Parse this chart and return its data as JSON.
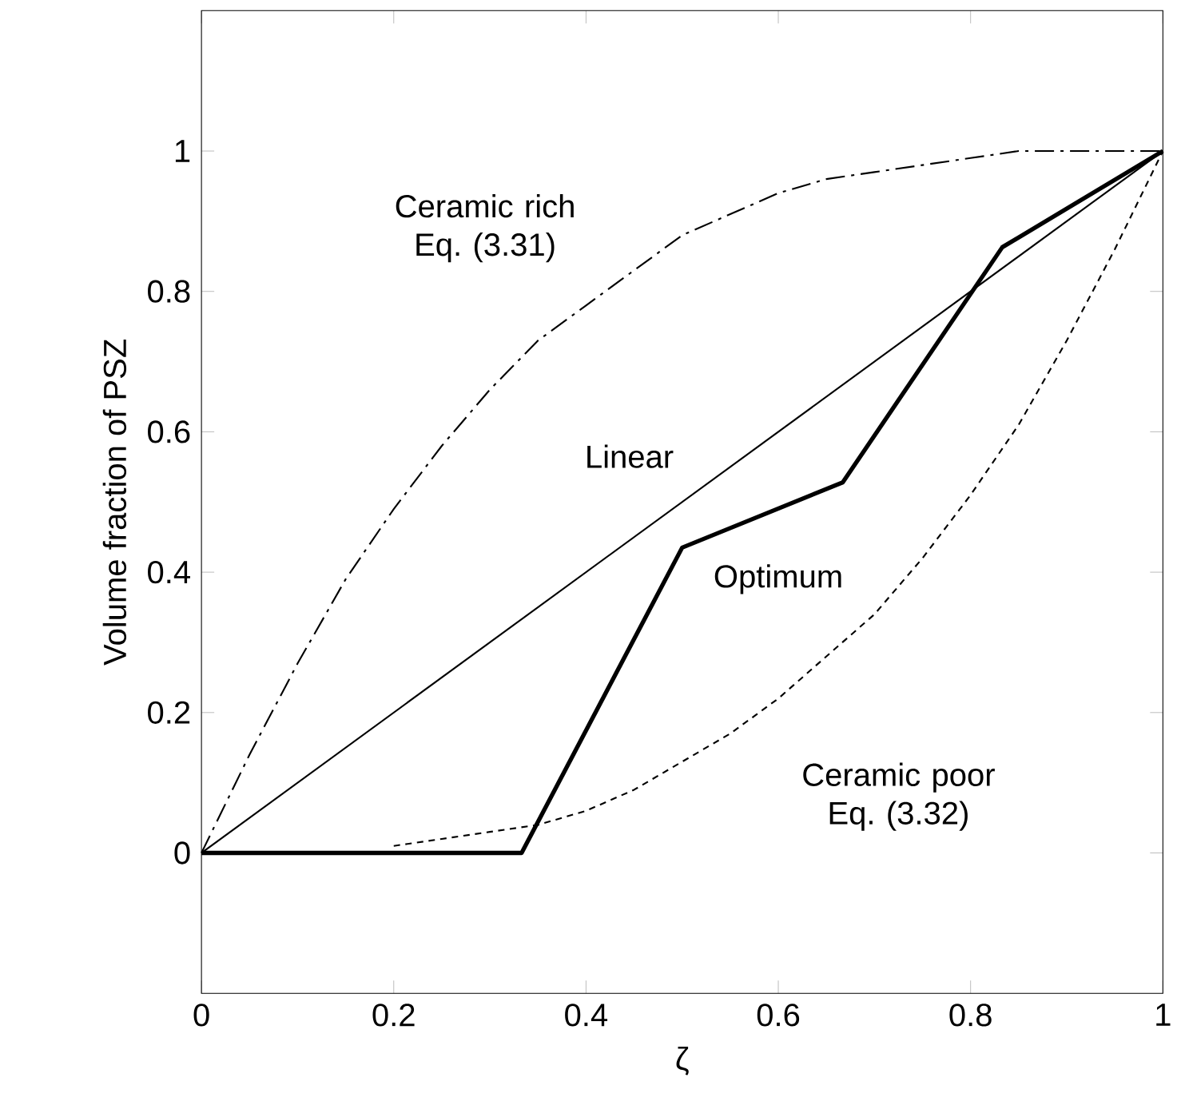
{
  "chart_data": {
    "type": "line",
    "xlabel": "ζ",
    "ylabel": "Volume fraction of PSZ",
    "xlim": [
      0,
      1
    ],
    "ylim": [
      -0.2,
      1.2
    ],
    "xticks": [
      0,
      0.2,
      0.4,
      0.6,
      0.8,
      1
    ],
    "yticks": [
      0,
      0.2,
      0.4,
      0.6,
      0.8,
      1
    ],
    "grid": false,
    "legend": false,
    "marker": "none",
    "series": [
      {
        "name": "Ceramic rich Eq. (3.31)",
        "color": "#000000",
        "line_style": "dashed",
        "x": [
          0,
          0.05,
          0.1,
          0.15,
          0.2,
          0.25,
          0.3,
          0.35,
          0.4,
          0.45,
          0.5,
          0.55,
          0.6,
          0.65,
          0.7,
          0.75,
          0.8,
          0.85,
          0.9,
          0.95,
          1
        ],
        "values": [
          0,
          0.14,
          0.27,
          0.39,
          0.49,
          0.58,
          0.66,
          0.73,
          0.78,
          0.83,
          0.88,
          0.91,
          0.94,
          0.96,
          0.97,
          0.98,
          0.99,
          1,
          1,
          1,
          1
        ]
      },
      {
        "name": "Linear",
        "color": "#000000",
        "line_style": "solid",
        "x": [
          0,
          1
        ],
        "values": [
          0,
          1
        ]
      },
      {
        "name": "Optimum",
        "color": "#000000",
        "line_style": "solid",
        "x": [
          0,
          0.333,
          0.5,
          0.667,
          0.833,
          1
        ],
        "values": [
          0,
          0,
          0.435,
          0.528,
          0.863,
          1
        ]
      },
      {
        "name": "Ceramic poor Eq. (3.32)",
        "color": "#000000",
        "line_style": "dotted",
        "x": [
          0.2,
          0.25,
          0.3,
          0.35,
          0.4,
          0.45,
          0.5,
          0.55,
          0.6,
          0.65,
          0.7,
          0.75,
          0.8,
          0.85,
          0.9,
          0.95,
          1
        ],
        "values": [
          0.01,
          0.02,
          0.03,
          0.04,
          0.06,
          0.09,
          0.13,
          0.17,
          0.22,
          0.28,
          0.34,
          0.42,
          0.51,
          0.61,
          0.73,
          0.86,
          1
        ]
      }
    ]
  }
}
